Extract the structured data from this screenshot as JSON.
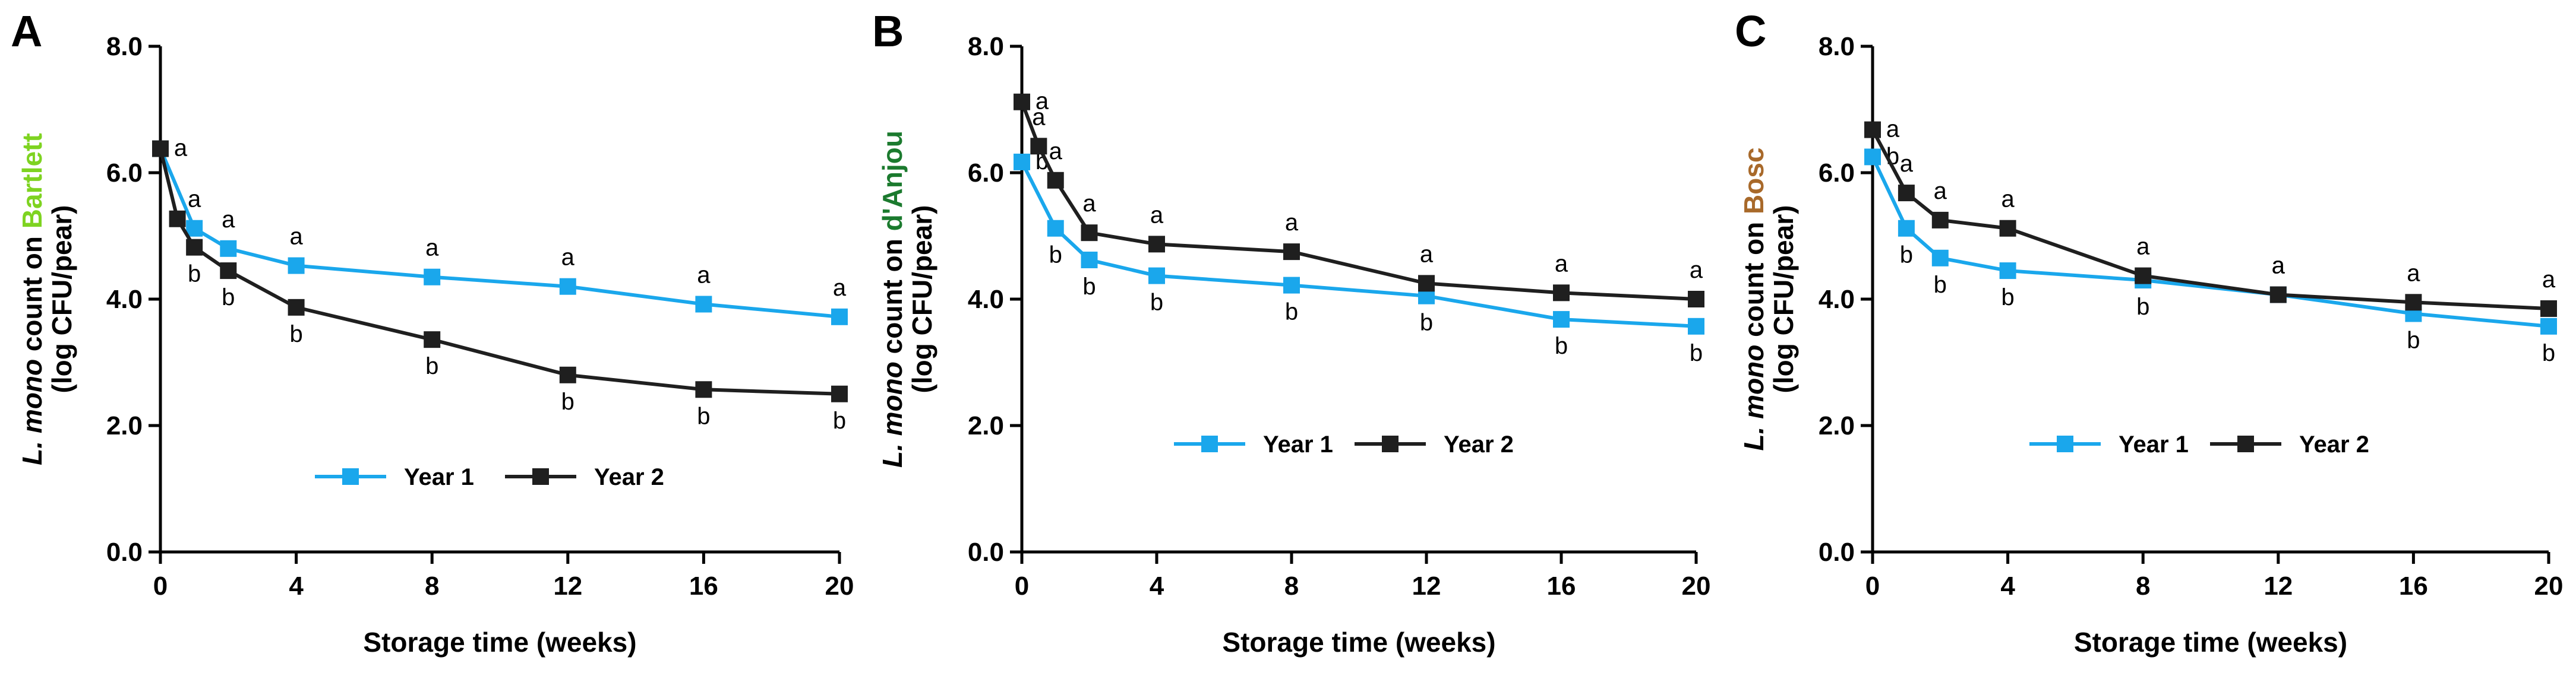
{
  "colors": {
    "year1": "#1aa7ec",
    "year2": "#1f1f1f",
    "bartlett": "#7ed321",
    "danjou": "#1b7a2e",
    "bosc": "#a8692a"
  },
  "chart_data": [
    {
      "type": "line",
      "panel": "A",
      "variety": "Bartlett",
      "variety_color_key": "bartlett",
      "ylabel_italic": "L. mono",
      "ylabel_mid": " count on ",
      "ylabel_line2": "(log CFU/pear)",
      "xlabel": "Storage time (weeks)",
      "xlim": [
        0,
        20
      ],
      "ylim": [
        0,
        8
      ],
      "xticks": [
        0,
        4,
        8,
        12,
        16,
        20
      ],
      "xtick_labels": [
        "0",
        "4",
        "8",
        "12",
        "16",
        "20"
      ],
      "yticks": [
        0,
        2,
        4,
        6,
        8
      ],
      "ytick_labels": [
        "0.0",
        "2.0",
        "4.0",
        "6.0",
        "8.0"
      ],
      "legend": [
        "Year 1",
        "Year 2"
      ],
      "series": [
        {
          "name": "Year 1",
          "color_key": "year1",
          "x": [
            0,
            1,
            2,
            4,
            8,
            12,
            16,
            20
          ],
          "y": [
            6.38,
            5.12,
            4.8,
            4.53,
            4.35,
            4.2,
            3.92,
            3.72
          ],
          "labels": [
            "a",
            "a",
            "a",
            "a",
            "a",
            "a",
            "a",
            "a"
          ]
        },
        {
          "name": "Year 2",
          "color_key": "year2",
          "x": [
            0,
            0.5,
            1,
            2,
            4,
            8,
            12,
            16,
            20
          ],
          "y": [
            6.38,
            5.27,
            4.82,
            4.45,
            3.87,
            3.36,
            2.8,
            2.57,
            2.5
          ],
          "labels": [
            "",
            "",
            "b",
            "b",
            "b",
            "b",
            "b",
            "b",
            "b"
          ]
        }
      ]
    },
    {
      "type": "line",
      "panel": "B",
      "variety": "d'Anjou",
      "variety_color_key": "danjou",
      "ylabel_italic": "L. mono",
      "ylabel_mid": " count on ",
      "ylabel_line2": "(log CFU/pear)",
      "xlabel": "Storage time (weeks)",
      "xlim": [
        0,
        20
      ],
      "ylim": [
        0,
        8
      ],
      "xticks": [
        0,
        4,
        8,
        12,
        16,
        20
      ],
      "xtick_labels": [
        "0",
        "4",
        "8",
        "12",
        "16",
        "20"
      ],
      "yticks": [
        0,
        2,
        4,
        6,
        8
      ],
      "ytick_labels": [
        "0.0",
        "2.0",
        "4.0",
        "6.0",
        "8.0"
      ],
      "legend": [
        "Year 1",
        "Year 2"
      ],
      "series": [
        {
          "name": "Year 1",
          "color_key": "year1",
          "x": [
            0,
            1,
            2,
            4,
            8,
            12,
            16,
            20
          ],
          "y": [
            6.17,
            5.12,
            4.62,
            4.37,
            4.22,
            4.05,
            3.68,
            3.57
          ],
          "labels": [
            "b",
            "b",
            "b",
            "b",
            "b",
            "b",
            "b",
            "b"
          ]
        },
        {
          "name": "Year 2",
          "color_key": "year2",
          "x": [
            0,
            0.5,
            1,
            2,
            4,
            8,
            12,
            16,
            20
          ],
          "y": [
            7.12,
            6.42,
            5.88,
            5.05,
            4.87,
            4.75,
            4.25,
            4.1,
            4.0
          ],
          "labels": [
            "a",
            "a",
            "a",
            "a",
            "a",
            "a",
            "a",
            "a",
            "a"
          ]
        }
      ]
    },
    {
      "type": "line",
      "panel": "C",
      "variety": "Bosc",
      "variety_color_key": "bosc",
      "ylabel_italic": "L. mono",
      "ylabel_mid": " count on ",
      "ylabel_line2": "(log CFU/pear)",
      "xlabel": "Storage time (weeks)",
      "xlim": [
        0,
        20
      ],
      "ylim": [
        0,
        8
      ],
      "xticks": [
        0,
        4,
        8,
        12,
        16,
        20
      ],
      "xtick_labels": [
        "0",
        "4",
        "8",
        "12",
        "16",
        "20"
      ],
      "yticks": [
        0,
        2,
        4,
        6,
        8
      ],
      "ytick_labels": [
        "0.0",
        "2.0",
        "4.0",
        "6.0",
        "8.0"
      ],
      "legend": [
        "Year 1",
        "Year 2"
      ],
      "series": [
        {
          "name": "Year 1",
          "color_key": "year1",
          "x": [
            0,
            1,
            2,
            4,
            8,
            12,
            16,
            20
          ],
          "y": [
            6.25,
            5.12,
            4.65,
            4.45,
            4.3,
            4.07,
            3.77,
            3.57
          ],
          "labels": [
            "b",
            "b",
            "b",
            "b",
            "b",
            "a",
            "b",
            "b"
          ]
        },
        {
          "name": "Year 2",
          "color_key": "year2",
          "x": [
            0,
            1,
            2,
            4,
            8,
            12,
            16,
            20
          ],
          "y": [
            6.68,
            5.68,
            5.25,
            5.12,
            4.37,
            4.07,
            3.95,
            3.85
          ],
          "labels": [
            "a",
            "a",
            "a",
            "a",
            "a",
            "a",
            "a",
            "a"
          ]
        }
      ]
    }
  ]
}
